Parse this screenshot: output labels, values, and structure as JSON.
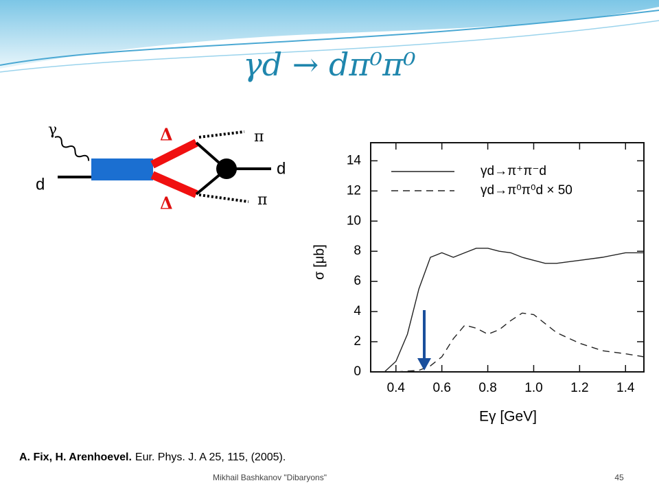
{
  "title": "γd → dπ⁰π⁰",
  "diagram": {
    "photon": "γ",
    "deuteron_in": "d",
    "delta_top": "Δ",
    "delta_bottom": "Δ",
    "pion_top": "π",
    "pion_bottom": "π",
    "deuteron_out": "d"
  },
  "chart_data": {
    "type": "line",
    "y_label": "σ [μb]",
    "x_label": "Eγ [GeV]",
    "x": [
      0.35,
      0.4,
      0.45,
      0.5,
      0.55,
      0.6,
      0.65,
      0.7,
      0.75,
      0.8,
      0.85,
      0.9,
      0.95,
      1.0,
      1.05,
      1.1,
      1.2,
      1.3,
      1.4,
      1.48
    ],
    "series": [
      {
        "name": "γd→π⁺π⁻d",
        "color": "#222222",
        "dash": "none",
        "values": [
          0,
          0.7,
          2.5,
          5.5,
          7.6,
          7.9,
          7.6,
          7.9,
          8.2,
          8.2,
          8.0,
          7.9,
          7.6,
          7.4,
          7.2,
          7.2,
          7.4,
          7.6,
          7.9,
          7.9
        ]
      },
      {
        "name": "γd→π⁰π⁰d × 50",
        "color": "#222222",
        "dash": "10 7",
        "values": [
          null,
          0,
          0.05,
          0.1,
          0.4,
          1.0,
          2.2,
          3.1,
          2.9,
          2.5,
          2.8,
          3.4,
          3.9,
          3.8,
          3.2,
          2.6,
          1.9,
          1.4,
          1.2,
          1.0
        ]
      }
    ],
    "xlim": [
      0.29,
      1.48
    ],
    "ylim": [
      0,
      15.2
    ],
    "xticks": [
      0.4,
      0.6,
      0.8,
      {
        "value": 1,
        "label": "1.0"
      },
      1.2,
      1.4
    ],
    "yticks": [
      0,
      2,
      4,
      6,
      8,
      10,
      12,
      14
    ],
    "legend": "upper right"
  },
  "citation": {
    "authors": "A. Fix, H. Arenhoevel.",
    "journal": "Eur. Phys. J. A 25, 115, (2005)."
  },
  "footer": {
    "presenter": "Mikhail Bashkanov \"Dibaryons\"",
    "page": "45"
  }
}
